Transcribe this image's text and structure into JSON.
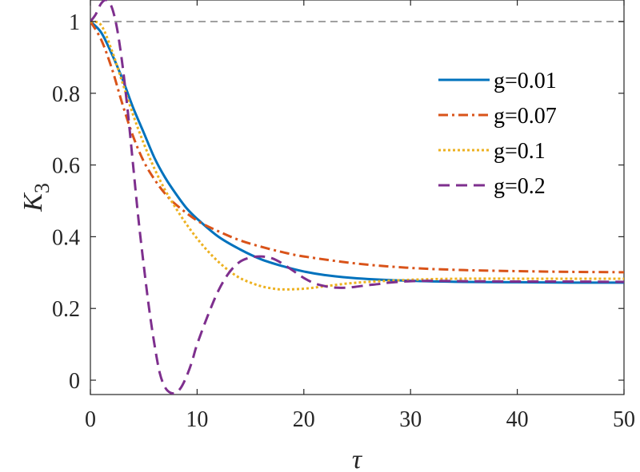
{
  "chart_data": {
    "type": "line",
    "title": "",
    "xlabel": "τ",
    "ylabel_main": "K",
    "ylabel_sub": "3",
    "xlim": [
      0,
      50
    ],
    "ylim": [
      -0.04,
      1.06
    ],
    "xticks": [
      0,
      10,
      20,
      30,
      40,
      50
    ],
    "xtick_labels": [
      "0",
      "10",
      "20",
      "30",
      "40",
      "50"
    ],
    "yticks": [
      0,
      0.2,
      0.4,
      0.6,
      0.8,
      1
    ],
    "ytick_labels": [
      "0",
      "0.2",
      "0.4",
      "0.6",
      "0.8",
      "1"
    ],
    "grid": false,
    "legend_position": "top-right",
    "reference_line": {
      "y": 1,
      "color": "#808080",
      "style": "dashed"
    },
    "series": [
      {
        "name": "g=0.01",
        "color": "#0072BD",
        "style": "solid",
        "x": [
          0,
          1,
          2,
          3,
          4,
          5,
          6,
          7,
          8,
          9,
          10,
          12,
          14,
          16,
          18,
          20,
          22,
          25,
          30,
          35,
          40,
          45,
          50
        ],
        "y": [
          1.0,
          0.97,
          0.91,
          0.84,
          0.76,
          0.69,
          0.62,
          0.565,
          0.52,
          0.48,
          0.45,
          0.4,
          0.365,
          0.337,
          0.318,
          0.303,
          0.293,
          0.284,
          0.277,
          0.274,
          0.273,
          0.272,
          0.272
        ]
      },
      {
        "name": "g=0.07",
        "color": "#D95319",
        "style": "dashdot",
        "x": [
          0,
          1,
          2,
          3,
          4,
          5,
          6,
          7,
          8,
          10,
          12,
          14,
          16,
          18,
          20,
          25,
          30,
          35,
          40,
          45,
          50
        ],
        "y": [
          1.0,
          0.95,
          0.87,
          0.77,
          0.68,
          0.61,
          0.56,
          0.52,
          0.49,
          0.445,
          0.415,
          0.39,
          0.372,
          0.357,
          0.345,
          0.325,
          0.313,
          0.307,
          0.304,
          0.302,
          0.301
        ]
      },
      {
        "name": "g=0.1",
        "color": "#EDB120",
        "style": "dotted",
        "x": [
          0,
          1,
          2,
          3,
          4,
          5,
          6,
          7,
          8,
          9,
          10,
          11,
          12,
          13,
          14,
          15,
          16,
          17,
          18,
          20,
          22,
          25,
          30,
          35,
          40,
          45,
          50
        ],
        "y": [
          1.0,
          0.99,
          0.92,
          0.83,
          0.74,
          0.66,
          0.59,
          0.53,
          0.48,
          0.435,
          0.395,
          0.36,
          0.33,
          0.305,
          0.285,
          0.272,
          0.262,
          0.256,
          0.253,
          0.255,
          0.262,
          0.272,
          0.28,
          0.283,
          0.283,
          0.283,
          0.283
        ]
      },
      {
        "name": "g=0.2",
        "color": "#7E2F8E",
        "style": "dashed",
        "x": [
          0,
          0.5,
          1,
          1.5,
          2,
          2.5,
          3,
          3.5,
          4,
          4.5,
          5,
          5.5,
          6,
          6.5,
          7,
          7.5,
          8,
          8.5,
          9,
          9.5,
          10,
          11,
          12,
          13,
          14,
          15,
          16,
          17,
          18,
          19,
          20,
          21,
          22,
          23,
          24,
          25,
          26,
          27,
          28,
          30,
          32,
          35,
          40,
          45,
          50
        ],
        "y": [
          1.0,
          1.02,
          1.05,
          1.06,
          1.04,
          0.98,
          0.88,
          0.75,
          0.6,
          0.45,
          0.32,
          0.2,
          0.1,
          0.02,
          -0.02,
          -0.035,
          -0.035,
          -0.02,
          0.01,
          0.05,
          0.1,
          0.18,
          0.25,
          0.3,
          0.33,
          0.342,
          0.345,
          0.34,
          0.325,
          0.305,
          0.285,
          0.27,
          0.262,
          0.258,
          0.258,
          0.261,
          0.265,
          0.268,
          0.272,
          0.276,
          0.277,
          0.276,
          0.275,
          0.275,
          0.274
        ]
      }
    ]
  }
}
